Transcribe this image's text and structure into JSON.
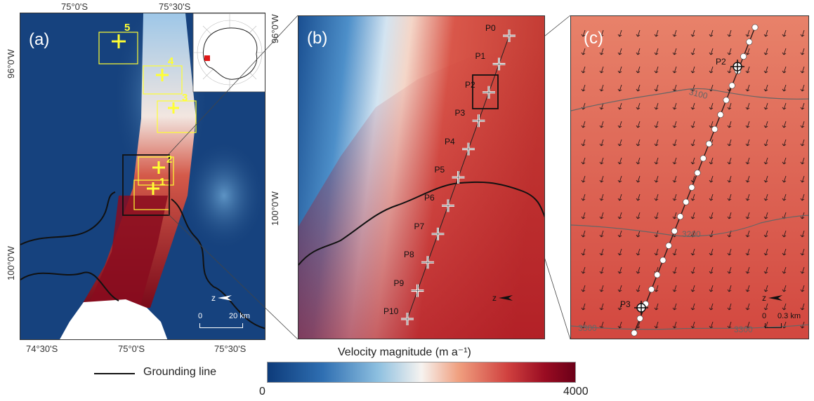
{
  "panels": {
    "a": {
      "label": "(a)",
      "ticks_top": [
        "75°0'S",
        "75°30'S"
      ],
      "ticks_bottom": [
        "74°30'S",
        "75°0'S",
        "75°30'S"
      ],
      "ticks_left": [
        "96°0'W",
        "100°0'W"
      ],
      "ticks_right": [
        "96°0'W",
        "100°0'W"
      ],
      "box_labels": [
        "5",
        "4",
        "3",
        "2",
        "1"
      ],
      "scalebar": {
        "left": "0",
        "right": "20 km"
      }
    },
    "b": {
      "label": "(b)",
      "points": [
        "P0",
        "P1",
        "P2",
        "P3",
        "P4",
        "P5",
        "P6",
        "P7",
        "P8",
        "P9",
        "P10"
      ]
    },
    "c": {
      "label": "(c)",
      "contours": [
        "3100",
        "3200",
        "3300",
        "3300"
      ],
      "point_labels": [
        "P2",
        "P3"
      ],
      "scalebar": {
        "left": "0",
        "right": "0.3 km"
      }
    }
  },
  "legend": {
    "grounding_line": "Grounding line",
    "colorbar_title": "Velocity magnitude (m a⁻¹)",
    "colorbar_min": "0",
    "colorbar_max": "4000",
    "colors": {
      "low": "#0d3b7a",
      "mid": "#f6f3f0",
      "high": "#6b0018",
      "marker": "#ffff33"
    }
  },
  "north_arrow": "z"
}
